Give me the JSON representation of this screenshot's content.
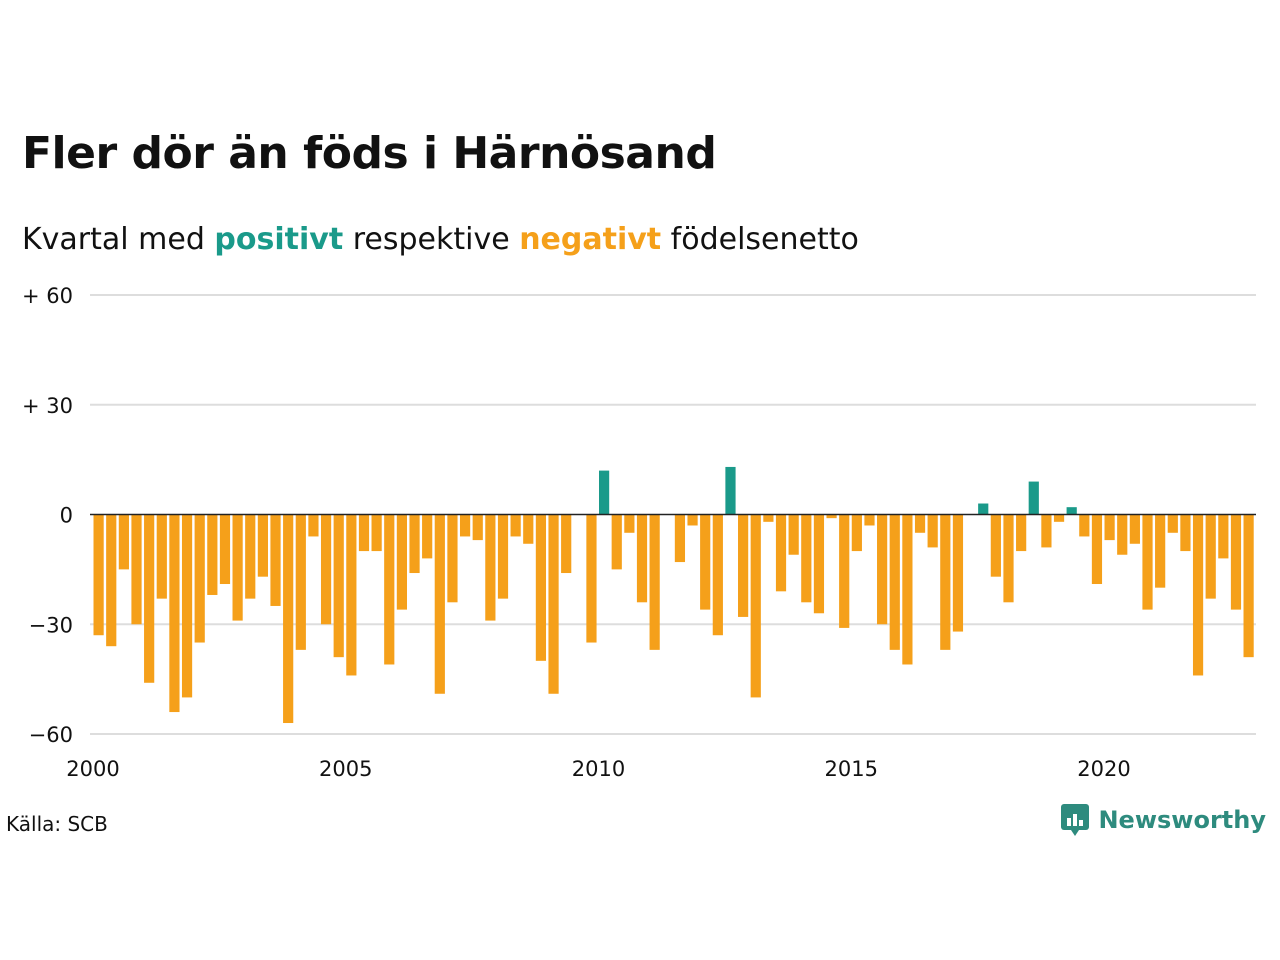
{
  "title": "Fler dör än föds i Härnösand",
  "subtitle": {
    "prefix": "Kvartal med ",
    "positive": "positivt",
    "middle": " respektive ",
    "negative": "negativt",
    "suffix": " födelsenetto"
  },
  "source": "Källa: SCB",
  "logo": {
    "text": "Newsworthy",
    "icon": "newsworthy-bar-chart-icon"
  },
  "colors": {
    "positive": "#1a9a8a",
    "negative": "#f5a01a",
    "grid": "#dddddd",
    "baseline": "#222222"
  },
  "chart_data": {
    "type": "bar",
    "y_tick_labels": [
      "+ 60",
      "+ 30",
      "0",
      "−30",
      "−60"
    ],
    "y_ticks": [
      60,
      30,
      0,
      -30,
      -60
    ],
    "ylim": [
      -60,
      60
    ],
    "x_tick_labels": [
      "2000",
      "2005",
      "2010",
      "2015",
      "2020"
    ],
    "x_ticks": [
      2000,
      2005,
      2010,
      2015,
      2020
    ],
    "x_start": 2000,
    "periods_per_year": 4,
    "grid": true,
    "values": [
      -33,
      -36,
      -15,
      -30,
      -46,
      -23,
      -54,
      -50,
      -35,
      -22,
      -19,
      -29,
      -23,
      -17,
      -25,
      -57,
      -37,
      -6,
      -30,
      -39,
      -44,
      -10,
      -10,
      -41,
      -26,
      -16,
      -12,
      -49,
      -24,
      -6,
      -7,
      -29,
      -23,
      -6,
      -8,
      -40,
      -49,
      -16,
      0,
      -35,
      12,
      -15,
      -5,
      -24,
      -37,
      0,
      -13,
      -3,
      -26,
      -33,
      13,
      -28,
      -50,
      -2,
      -21,
      -11,
      -24,
      -27,
      -1,
      -31,
      -10,
      -3,
      -30,
      -37,
      -41,
      -5,
      -9,
      -37,
      -32,
      0,
      3,
      -17,
      -24,
      -10,
      9,
      -9,
      -2,
      2,
      -6,
      -19,
      -7,
      -11,
      -8,
      -26,
      -20,
      -5,
      -10,
      -44,
      -23,
      -12,
      -26,
      -39
    ]
  }
}
